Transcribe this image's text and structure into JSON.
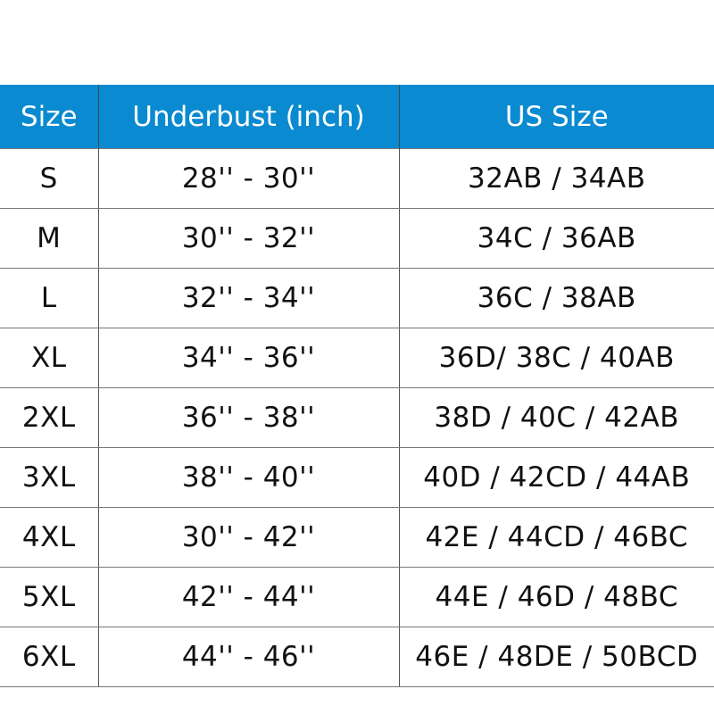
{
  "table": {
    "headers": [
      "Size",
      "Underbust (inch)",
      "US Size"
    ],
    "rows": [
      [
        "S",
        "28'' - 30''",
        "32AB / 34AB"
      ],
      [
        "M",
        "30'' - 32''",
        "34C / 36AB"
      ],
      [
        "L",
        "32'' - 34''",
        "36C / 38AB"
      ],
      [
        "XL",
        "34'' - 36''",
        "36D/ 38C / 40AB"
      ],
      [
        "2XL",
        "36'' - 38''",
        "38D / 40C / 42AB"
      ],
      [
        "3XL",
        "38'' - 40''",
        "40D / 42CD / 44AB"
      ],
      [
        "4XL",
        "30'' - 42''",
        "42E / 44CD / 46BC"
      ],
      [
        "5XL",
        "42'' - 44''",
        "44E / 46D / 48BC"
      ],
      [
        "6XL",
        "44'' - 46''",
        "46E / 48DE / 50BCD"
      ]
    ]
  },
  "colors": {
    "header_bg": "#0a8ad0",
    "header_text": "#ffffff"
  }
}
